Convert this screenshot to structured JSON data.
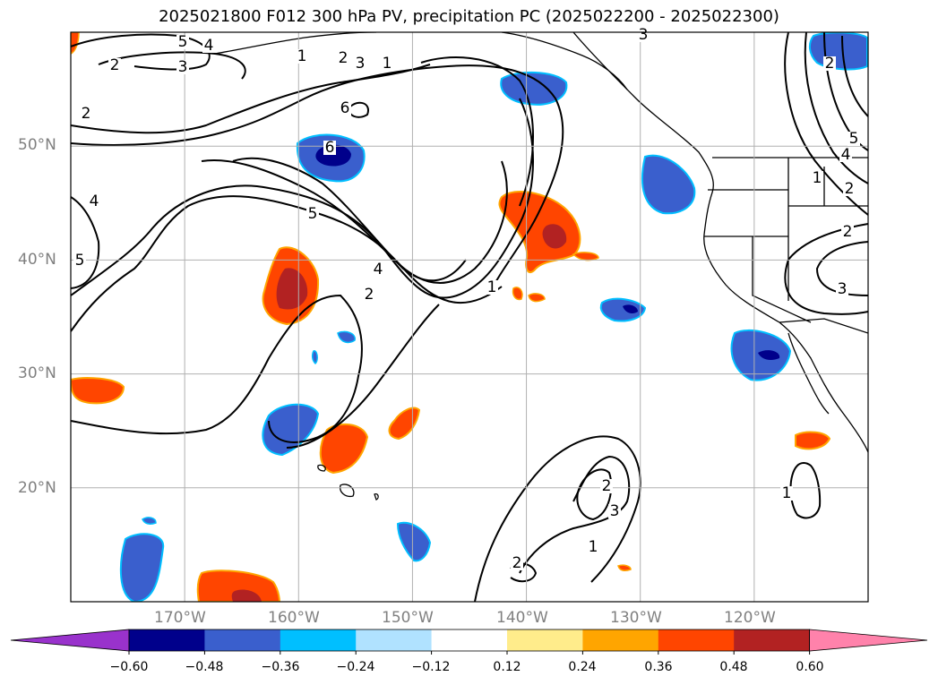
{
  "title": "2025021800 F012 300 hPa PV, precipitation PC (2025022200 - 2025022300)",
  "map": {
    "lat_labels": [
      "50°N",
      "40°N",
      "30°N",
      "20°N"
    ],
    "lon_labels": [
      "170°W",
      "160°W",
      "150°W",
      "140°W",
      "130°W",
      "120°W"
    ],
    "lon_range": [
      180,
      110
    ],
    "lat_range": [
      10,
      60
    ],
    "grid": true,
    "contour_labels": [
      "5",
      "4",
      "3",
      "2",
      "1",
      "2",
      "3",
      "1",
      "2",
      "6",
      "6",
      "5",
      "4",
      "2",
      "1",
      "4",
      "5",
      "3",
      "2",
      "3",
      "1",
      "2",
      "1",
      "3",
      "2",
      "5",
      "4",
      "2",
      "1",
      "2"
    ]
  },
  "colorbar": {
    "ticks": [
      "−0.60",
      "−0.48",
      "−0.36",
      "−0.24",
      "−0.12",
      "0.12",
      "0.24",
      "0.36",
      "0.48",
      "0.60"
    ],
    "colors": [
      "#9932cc",
      "#00008b",
      "#3a5fcd",
      "#00bfff",
      "#b0e2ff",
      "#ffffff",
      "#ffec8b",
      "#ffa500",
      "#ff4500",
      "#b22222",
      "#ff82ab"
    ],
    "extend": "both"
  },
  "colors": {
    "land_outline": "#000000",
    "gridline": "#b0b0b0",
    "negative_fill": "#3a5fcd",
    "negative_core": "#00008b",
    "negative_edge": "#00bfff",
    "positive_fill": "#ff4500",
    "positive_core": "#b22222",
    "positive_edge": "#ffa500"
  }
}
